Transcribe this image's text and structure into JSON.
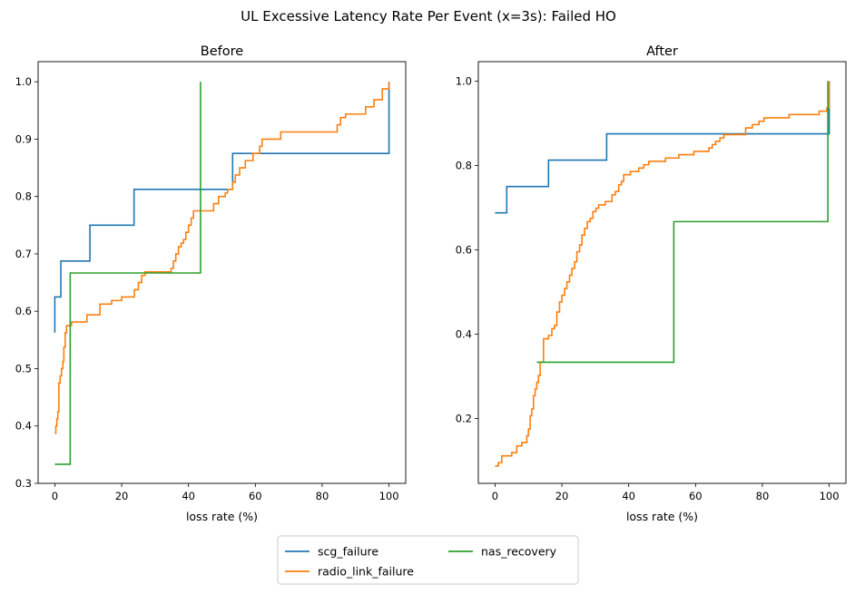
{
  "figure": {
    "title": "UL Excessive Latency Rate Per Event (x=3s): Failed HO"
  },
  "colors": {
    "scg_failure": "#1f77b4",
    "radio_link_failure": "#ff7f0e",
    "nas_recovery": "#2ca02c"
  },
  "legend": {
    "placement": "bottom-center",
    "columns": 2,
    "entries": [
      {
        "key": "scg_failure",
        "label": "scg_failure"
      },
      {
        "key": "radio_link_failure",
        "label": "radio_link_failure"
      },
      {
        "key": "nas_recovery",
        "label": "nas_recovery"
      }
    ]
  },
  "chart_data": [
    {
      "type": "line",
      "step": true,
      "title": "Before",
      "xlabel": "loss rate (%)",
      "ylabel": "",
      "xlim": [
        -5,
        105
      ],
      "ylim": [
        0.3,
        1.035
      ],
      "xticks": [
        0,
        20,
        40,
        60,
        80,
        100
      ],
      "yticks": [
        0.3,
        0.4,
        0.5,
        0.6,
        0.7,
        0.8,
        0.9,
        1.0
      ],
      "ytick_labels": [
        "0.3",
        "0.4",
        "0.5",
        "0.6",
        "0.7",
        "0.8",
        "0.9",
        "1.0"
      ],
      "series": [
        {
          "name": "scg_failure",
          "color": "#1f77b4",
          "x": [
            0,
            0,
            1.8,
            10.5,
            23.7,
            53.2,
            100
          ],
          "y": [
            0.5625,
            0.625,
            0.6875,
            0.75,
            0.8125,
            0.875,
            1.0
          ]
        },
        {
          "name": "radio_link_failure",
          "color": "#ff7f0e",
          "x": [
            0,
            0.3,
            0.6,
            0.9,
            1.2,
            1.6,
            2.0,
            2.4,
            2.7,
            3.1,
            3.5,
            4.0,
            5.0,
            9.6,
            13.5,
            17.0,
            20.0,
            23.8,
            25.0,
            26.0,
            27.0,
            34.8,
            35.5,
            36.2,
            37.0,
            37.8,
            38.5,
            39.2,
            40.0,
            40.8,
            41.5,
            42.2,
            43.0,
            43.8,
            44.8,
            46.0,
            47.5,
            49.0,
            50.3,
            51.0,
            51.7,
            52.4,
            53.2,
            54.0,
            55.3,
            57.0,
            59.3,
            61.3,
            62.0,
            67.6,
            84.5,
            85.5,
            87.0,
            93.0,
            95.5,
            98.0,
            100
          ],
          "y": [
            0.3875,
            0.4,
            0.4125,
            0.425,
            0.475,
            0.4875,
            0.5,
            0.5125,
            0.5375,
            0.5625,
            0.575,
            0.575,
            0.5812,
            0.5937,
            0.6125,
            0.6187,
            0.625,
            0.6375,
            0.65,
            0.6625,
            0.6687,
            0.675,
            0.6875,
            0.7,
            0.7125,
            0.7187,
            0.725,
            0.7375,
            0.75,
            0.7625,
            0.775,
            0.775,
            0.775,
            0.775,
            0.775,
            0.775,
            0.7875,
            0.8,
            0.8,
            0.8062,
            0.8125,
            0.8125,
            0.825,
            0.8375,
            0.85,
            0.8625,
            0.875,
            0.8875,
            0.9,
            0.9125,
            0.925,
            0.9375,
            0.9437,
            0.9562,
            0.9687,
            0.9875,
            1.0
          ]
        },
        {
          "name": "nas_recovery",
          "color": "#2ca02c",
          "x": [
            0,
            4.6,
            43.6
          ],
          "y": [
            0.3333,
            0.6667,
            1.0
          ]
        }
      ]
    },
    {
      "type": "line",
      "step": true,
      "title": "After",
      "xlabel": "loss rate (%)",
      "ylabel": "",
      "xlim": [
        -5,
        105
      ],
      "ylim": [
        0.046,
        1.046
      ],
      "xticks": [
        0,
        20,
        40,
        60,
        80,
        100
      ],
      "yticks": [
        0.2,
        0.4,
        0.6,
        0.8,
        1.0
      ],
      "ytick_labels": [
        "0.2",
        "0.4",
        "0.6",
        "0.8",
        "1.0"
      ],
      "series": [
        {
          "name": "scg_failure",
          "color": "#1f77b4",
          "x": [
            0,
            3.5,
            16.0,
            33.4,
            100
          ],
          "y": [
            0.6875,
            0.75,
            0.8125,
            0.875,
            1.0
          ]
        },
        {
          "name": "radio_link_failure",
          "color": "#ff7f0e",
          "x": [
            0,
            1.0,
            2.0,
            5.0,
            6.5,
            8.0,
            9.5,
            10.0,
            10.5,
            11.0,
            11.5,
            12.0,
            12.5,
            13.0,
            13.5,
            14.5,
            16.0,
            17.0,
            17.8,
            18.5,
            19.3,
            20.0,
            20.8,
            21.5,
            22.3,
            23.0,
            23.8,
            24.5,
            25.3,
            26.0,
            26.8,
            27.6,
            28.5,
            29.3,
            30.2,
            31.0,
            32.0,
            33.0,
            35.0,
            36.0,
            37.0,
            37.8,
            38.5,
            39.3,
            40.5,
            43.0,
            44.5,
            46.0,
            48.5,
            51.0,
            55.0,
            59.5,
            64.0,
            65.0,
            66.0,
            67.3,
            68.5,
            75.0,
            77.0,
            79.0,
            80.5,
            88.0,
            97.0,
            99.3,
            100
          ],
          "y": [
            0.0873,
            0.0952,
            0.1111,
            0.119,
            0.1349,
            0.1429,
            0.1587,
            0.1746,
            0.2063,
            0.2222,
            0.254,
            0.2698,
            0.2857,
            0.3016,
            0.3333,
            0.3889,
            0.3968,
            0.4127,
            0.4206,
            0.4524,
            0.4762,
            0.4921,
            0.5079,
            0.5238,
            0.5397,
            0.5556,
            0.5714,
            0.5952,
            0.6111,
            0.6349,
            0.6508,
            0.6667,
            0.6746,
            0.6905,
            0.6984,
            0.7063,
            0.7063,
            0.7143,
            0.7302,
            0.7381,
            0.754,
            0.7619,
            0.7778,
            0.7778,
            0.7857,
            0.7937,
            0.8016,
            0.8095,
            0.8095,
            0.8175,
            0.8254,
            0.8333,
            0.8413,
            0.8492,
            0.8571,
            0.8651,
            0.873,
            0.8889,
            0.8968,
            0.9048,
            0.9127,
            0.9206,
            0.9286,
            0.9365,
            1.0
          ]
        },
        {
          "name": "nas_recovery",
          "color": "#2ca02c",
          "x": [
            12.5,
            53.5,
            99.6
          ],
          "y": [
            0.3333,
            0.6667,
            1.0
          ]
        }
      ]
    }
  ]
}
